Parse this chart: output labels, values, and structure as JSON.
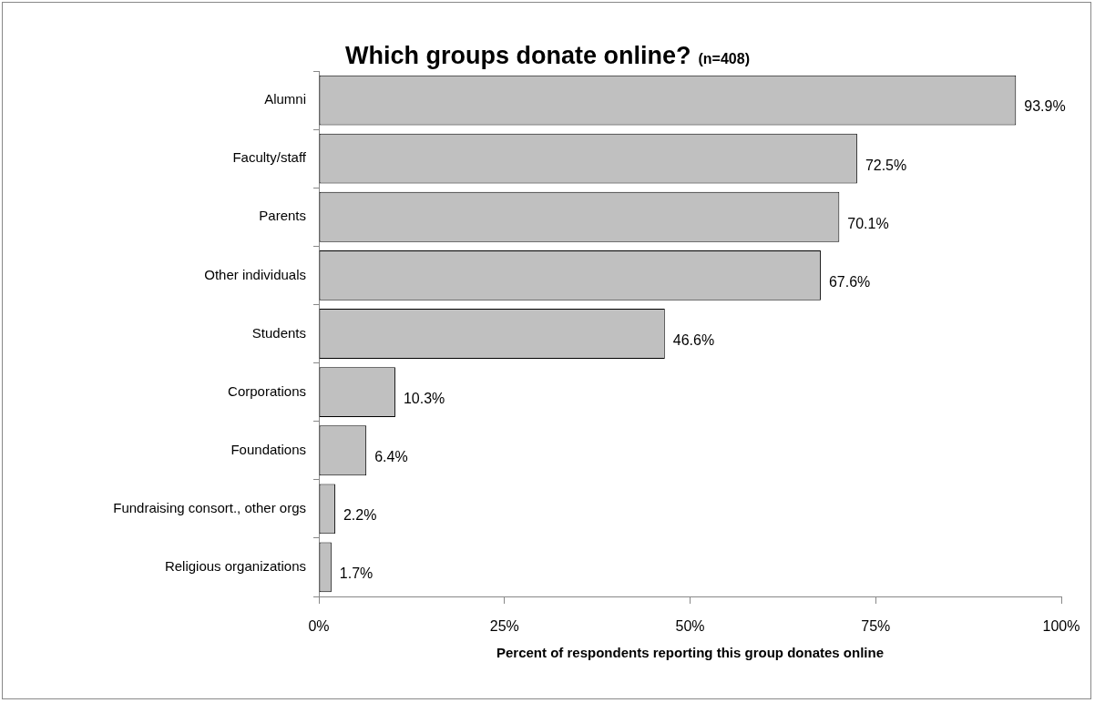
{
  "chart_data": {
    "type": "bar",
    "orientation": "horizontal",
    "title": "Which groups donate online?",
    "subtitle": "(n=408)",
    "xlabel": "Percent of respondents reporting this group donates online",
    "categories": [
      "Alumni",
      "Faculty/staff",
      "Parents",
      "Other individuals",
      "Students",
      "Corporations",
      "Foundations",
      "Fundraising consort., other orgs",
      "Religious organizations"
    ],
    "values": [
      93.9,
      72.5,
      70.1,
      67.6,
      46.6,
      10.3,
      6.4,
      2.2,
      1.7
    ],
    "value_labels": [
      "93.9%",
      "72.5%",
      "70.1%",
      "67.6%",
      "46.6%",
      "10.3%",
      "6.4%",
      "2.2%",
      "1.7%"
    ],
    "color": "#c0c0c0",
    "xlim": [
      0,
      100
    ],
    "xticks": [
      {
        "value": 0,
        "label": "0%"
      },
      {
        "value": 25,
        "label": "25%"
      },
      {
        "value": 50,
        "label": "50%"
      },
      {
        "value": 75,
        "label": "75%"
      },
      {
        "value": 100,
        "label": "100%"
      }
    ],
    "grid": false,
    "legend": false
  }
}
